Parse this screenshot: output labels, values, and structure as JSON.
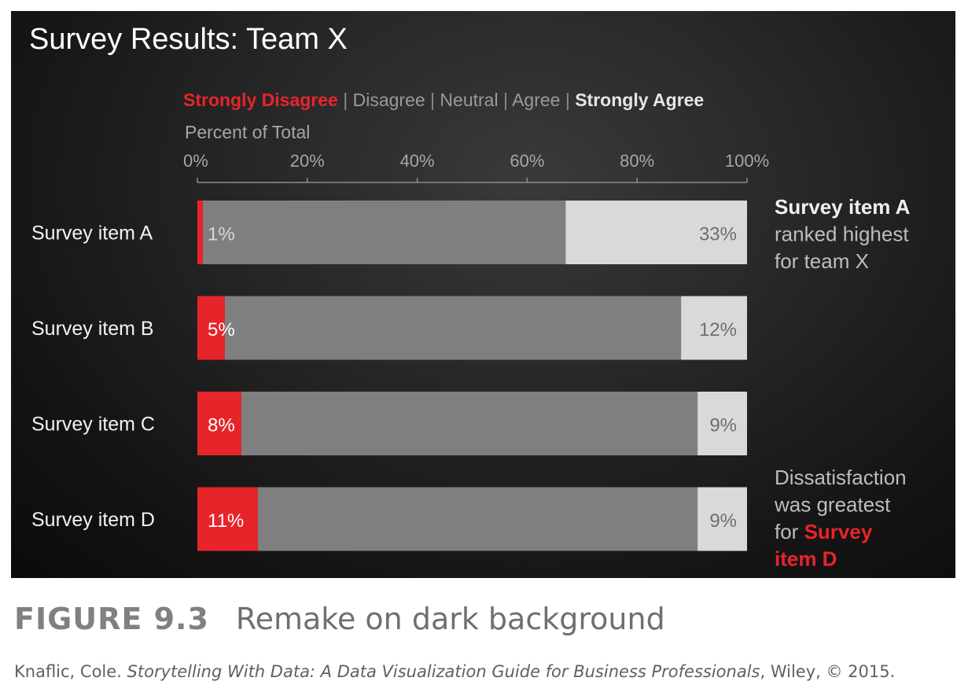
{
  "chart_data": {
    "type": "bar",
    "stacked": true,
    "orientation": "horizontal",
    "title": "Survey Results: Team X",
    "legend": [
      {
        "label": "Strongly Disagree",
        "color": "#e8242b",
        "bold": true
      },
      {
        "label": "Disagree",
        "color": "#9a9a9a",
        "bold": false
      },
      {
        "label": "Neutral",
        "color": "#9a9a9a",
        "bold": false
      },
      {
        "label": "Agree",
        "color": "#9a9a9a",
        "bold": false
      },
      {
        "label": "Strongly Agree",
        "color": "#e6e6e6",
        "bold": true
      }
    ],
    "legend_separator": " | ",
    "xlabel": "Percent of Total",
    "xlim": [
      0,
      100
    ],
    "x_ticks": [
      0,
      20,
      40,
      60,
      80,
      100
    ],
    "x_tick_labels": [
      "0%",
      "20%",
      "40%",
      "60%",
      "80%",
      "100%"
    ],
    "categories": [
      "Survey item A",
      "Survey item B",
      "Survey item C",
      "Survey item D"
    ],
    "series": [
      {
        "name": "Strongly Disagree",
        "color": "#e8242b",
        "values": [
          1,
          5,
          8,
          11
        ],
        "labels": [
          "1%",
          "5%",
          "8%",
          "11%"
        ]
      },
      {
        "name": "Disagree | Neutral | Agree",
        "color": "#7f7f7f",
        "values": [
          66,
          83,
          83,
          80
        ]
      },
      {
        "name": "Strongly Agree",
        "color": "#d9d9d9",
        "values": [
          33,
          12,
          9,
          9
        ],
        "labels": [
          "33%",
          "12%",
          "9%",
          "9%"
        ]
      }
    ],
    "annotations": [
      {
        "category": "Survey item A",
        "lines": [
          [
            {
              "text": "Survey item A",
              "bold": true,
              "color": "#f0f0f0"
            }
          ],
          [
            {
              "text": "ranked highest",
              "bold": false,
              "color": "#bdbdbd"
            }
          ],
          [
            {
              "text": "for team X",
              "bold": false,
              "color": "#bdbdbd"
            }
          ]
        ]
      },
      {
        "category": "Survey item D",
        "lines": [
          [
            {
              "text": "Dissatisfaction",
              "bold": false,
              "color": "#bdbdbd"
            }
          ],
          [
            {
              "text": "was greatest",
              "bold": false,
              "color": "#bdbdbd"
            }
          ],
          [
            {
              "text": "for ",
              "bold": false,
              "color": "#bdbdbd"
            },
            {
              "text": "Survey",
              "bold": true,
              "color": "#e8242b"
            }
          ],
          [
            {
              "text": "item D",
              "bold": true,
              "color": "#e8242b"
            }
          ]
        ]
      }
    ],
    "colors": {
      "background": "#161616",
      "axis": "#8c8c8c",
      "category_label": "#f2f2f2",
      "title": "#ffffff"
    }
  },
  "caption": {
    "figure_number": "FIGURE 9.3",
    "text": "Remake on dark background"
  },
  "credit": {
    "prefix": "Knaflic, Cole. ",
    "book_title": "Storytelling With Data: A Data Visualization Guide for Business Professionals",
    "suffix": ", Wiley, © 2015."
  }
}
